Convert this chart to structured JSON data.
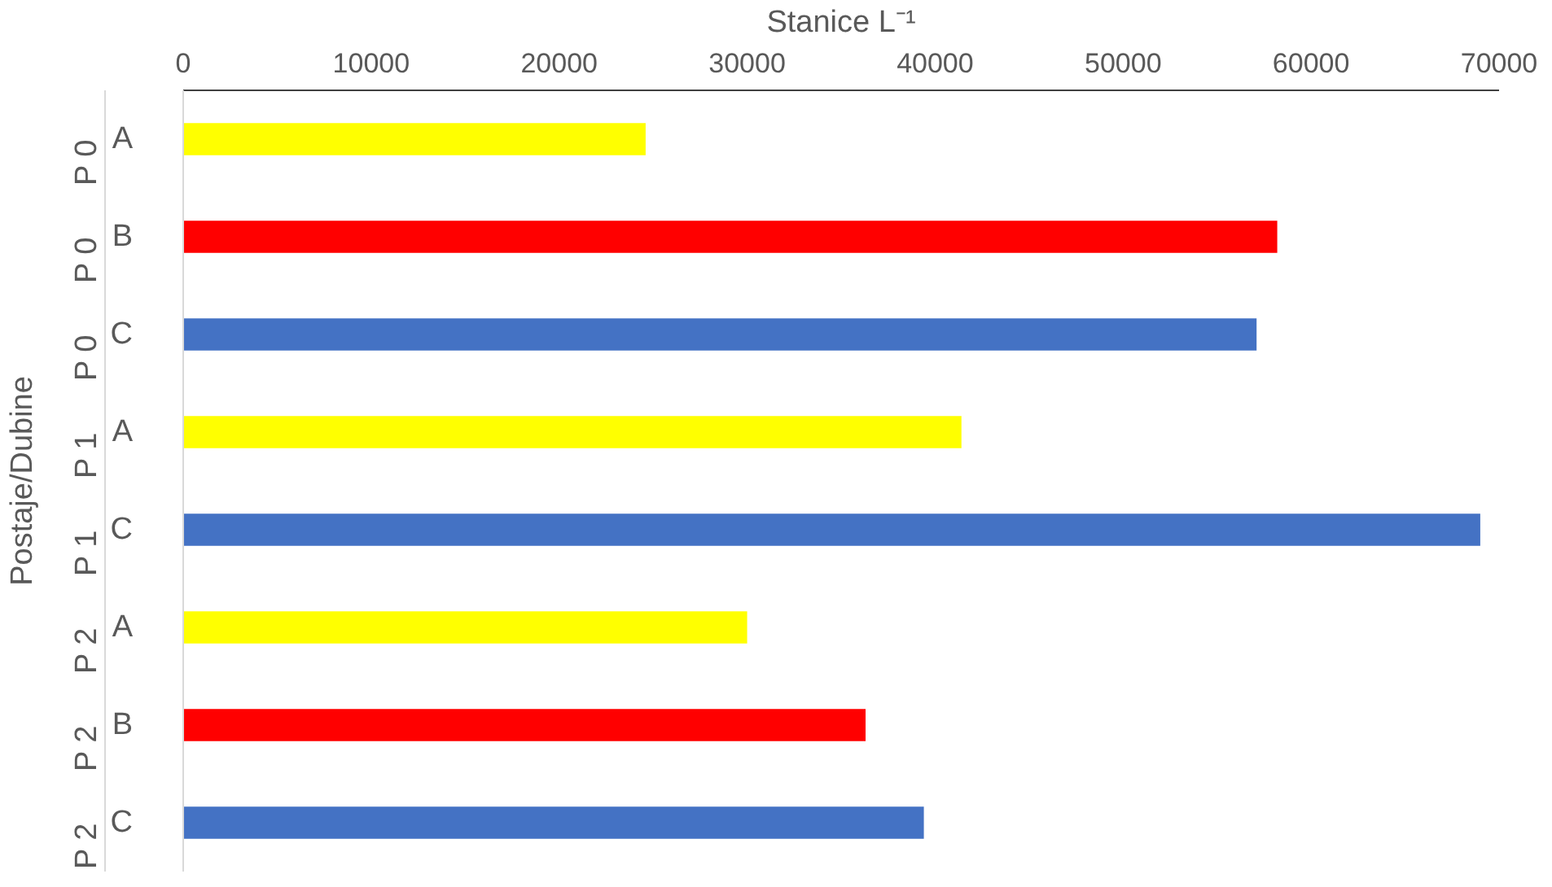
{
  "chart_data": {
    "type": "bar",
    "orientation": "horizontal",
    "xlabel": "Stanice L⁻¹",
    "ylabel": "Postaje/Dubine",
    "categories": [
      [
        "P 0",
        "A"
      ],
      [
        "P 0",
        "B"
      ],
      [
        "P 0",
        "C"
      ],
      [
        "P 1",
        "A"
      ],
      [
        "P 1",
        "C"
      ],
      [
        "P 2",
        "A"
      ],
      [
        "P 2",
        "B"
      ],
      [
        "P 2",
        "C"
      ]
    ],
    "values": [
      24600,
      58200,
      57100,
      41400,
      69000,
      30000,
      36300,
      39400
    ],
    "colors": [
      "#ffff00",
      "#ff0000",
      "#4472c4",
      "#ffff00",
      "#4472c4",
      "#ffff00",
      "#ff0000",
      "#4472c4"
    ],
    "xlim": [
      0,
      70000
    ],
    "xticks": [
      0,
      10000,
      20000,
      30000,
      40000,
      50000,
      60000,
      70000
    ],
    "grid": false
  }
}
